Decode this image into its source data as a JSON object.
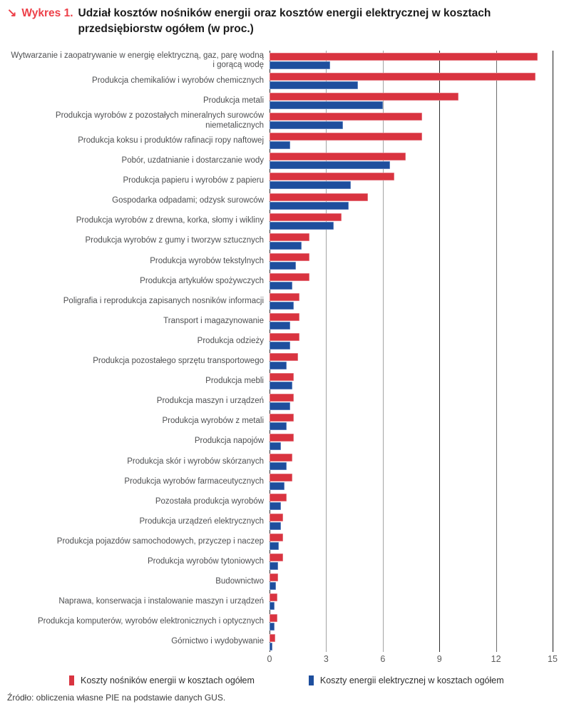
{
  "title": {
    "arrow": "↘",
    "label": "Wykres 1.",
    "text": "Udział kosztów nośników energii oraz kosztów energii elektrycznej w kosztach przedsiębiorstw ogółem (w proc.)"
  },
  "chart_data": {
    "type": "bar",
    "orientation": "horizontal",
    "grid": true,
    "legend_position": "bottom",
    "xlim": [
      0,
      15
    ],
    "xticks": [
      0,
      3,
      6,
      9,
      12,
      15
    ],
    "categories": [
      "Wytwarzanie i zaopatrywanie w energię elektryczną, gaz, parę wodną i gorącą wodę",
      "Produkcja chemikaliów i wyrobów chemicznych",
      "Produkcja metali",
      "Produkcja wyrobów z pozostałych mineralnych surowców niemetalicznych",
      "Produkcja koksu i produktów rafinacji ropy naftowej",
      "Pobór, uzdatnianie i dostarczanie wody",
      "Produkcja papieru i wyrobów z papieru",
      "Gospodarka odpadami; odzysk surowców",
      "Produkcja wyrobów z drewna, korka, słomy i wikliny",
      "Produkcja wyrobów z gumy i tworzyw sztucznych",
      "Produkcja wyrobów tekstylnych",
      "Produkcja artykułów spożywczych",
      "Poligrafia i reprodukcja zapisanych nosników informacji",
      "Transport i magazynowanie",
      "Produkcja odzieży",
      "Produkcja pozostałego sprzętu transportowego",
      "Produkcja mebli",
      "Produkcja maszyn i urządzeń",
      "Produkcja wyrobów z metali",
      "Produkcja napojów",
      "Produkcja skór i wyrobów skórzanych",
      "Produkcja wyrobów farmaceutycznych",
      "Pozostała produkcja wyrobów",
      "Produkcja urządzeń elektrycznych",
      "Produkcja pojazdów samochodowych, przyczep i naczep",
      "Produkcja wyrobów tytoniowych",
      "Budownictwo",
      "Naprawa, konserwacja i instalowanie maszyn i urządzeń",
      "Produkcja komputerów, wyrobów elektronicznych i optycznych",
      "Górnictwo i wydobywanie"
    ],
    "series": [
      {
        "name": "Koszty nośników energii w kosztach ogółem",
        "color": "#D93440",
        "values": [
          14.2,
          14.1,
          10.0,
          8.1,
          8.1,
          7.2,
          6.6,
          5.2,
          3.8,
          2.1,
          2.1,
          2.1,
          1.6,
          1.6,
          1.6,
          1.5,
          1.3,
          1.3,
          1.3,
          1.3,
          1.2,
          1.2,
          0.9,
          0.7,
          0.7,
          0.7,
          0.45,
          0.4,
          0.4,
          0.3
        ]
      },
      {
        "name": "Koszty energii elektrycznej w kosztach ogółem",
        "color": "#1E4E9D",
        "values": [
          3.2,
          4.7,
          6.0,
          3.9,
          1.1,
          6.4,
          4.3,
          4.2,
          3.4,
          1.7,
          1.4,
          1.2,
          1.3,
          1.1,
          1.1,
          0.9,
          1.2,
          1.1,
          0.9,
          0.6,
          0.9,
          0.8,
          0.6,
          0.6,
          0.5,
          0.45,
          0.35,
          0.25,
          0.25,
          0.15
        ]
      }
    ]
  },
  "source": "Źródło: obliczenia własne PIE na podstawie danych GUS."
}
